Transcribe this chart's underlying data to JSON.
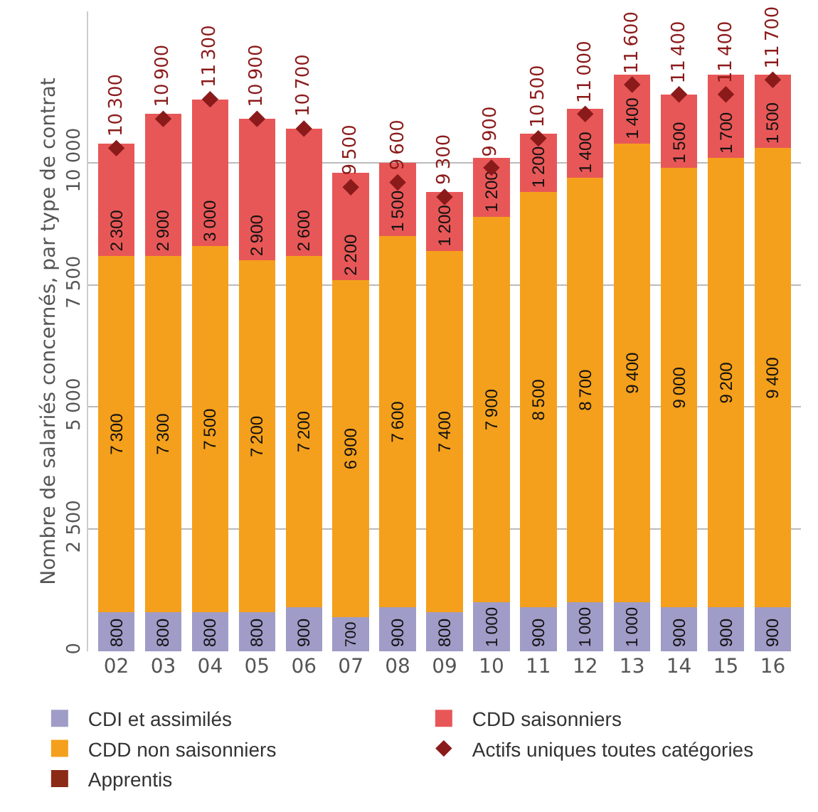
{
  "chart_data": {
    "type": "bar",
    "stacked": true,
    "ylabel": "Nombre de salariés concernés, par type de contrat",
    "categories": [
      "02",
      "03",
      "04",
      "05",
      "06",
      "07",
      "08",
      "09",
      "10",
      "11",
      "12",
      "13",
      "14",
      "15",
      "16"
    ],
    "ylim": [
      0,
      13100
    ],
    "yticks": [
      {
        "value": 0,
        "label": "0"
      },
      {
        "value": 2500,
        "label": "2 500"
      },
      {
        "value": 5000,
        "label": "5 000"
      },
      {
        "value": 7500,
        "label": "7 500"
      },
      {
        "value": 10000,
        "label": "10 000"
      }
    ],
    "grid": "y",
    "legend": "bottom",
    "data_labels": true,
    "series": [
      {
        "name": "CDI et assimilés",
        "color": "#9f9cc8",
        "values": [
          800,
          800,
          800,
          800,
          900,
          700,
          900,
          800,
          1000,
          900,
          1000,
          1000,
          900,
          900,
          900
        ]
      },
      {
        "name": "CDD non saisonniers",
        "color": "#f4a01c",
        "values": [
          7300,
          7300,
          7500,
          7200,
          7200,
          6900,
          7600,
          7400,
          7900,
          8500,
          8700,
          9400,
          9000,
          9200,
          9400
        ]
      },
      {
        "name": "Apprentis",
        "color": "#8b2a17",
        "values": [
          null,
          null,
          null,
          null,
          null,
          null,
          null,
          null,
          null,
          null,
          null,
          null,
          null,
          null,
          null
        ]
      },
      {
        "name": "CDD saisonniers",
        "color": "#e85757",
        "values": [
          2300,
          2900,
          3000,
          2900,
          2600,
          2200,
          1500,
          1200,
          1200,
          1200,
          1400,
          1400,
          1500,
          1700,
          1500
        ]
      },
      {
        "name": "Actifs uniques toutes catégories",
        "type": "scatter",
        "marker": "diamond",
        "color": "#8b1a1a",
        "values": [
          10300,
          10900,
          11300,
          10900,
          10700,
          9500,
          9600,
          9300,
          9900,
          10500,
          11000,
          11600,
          11400,
          11400,
          11700
        ]
      }
    ]
  }
}
